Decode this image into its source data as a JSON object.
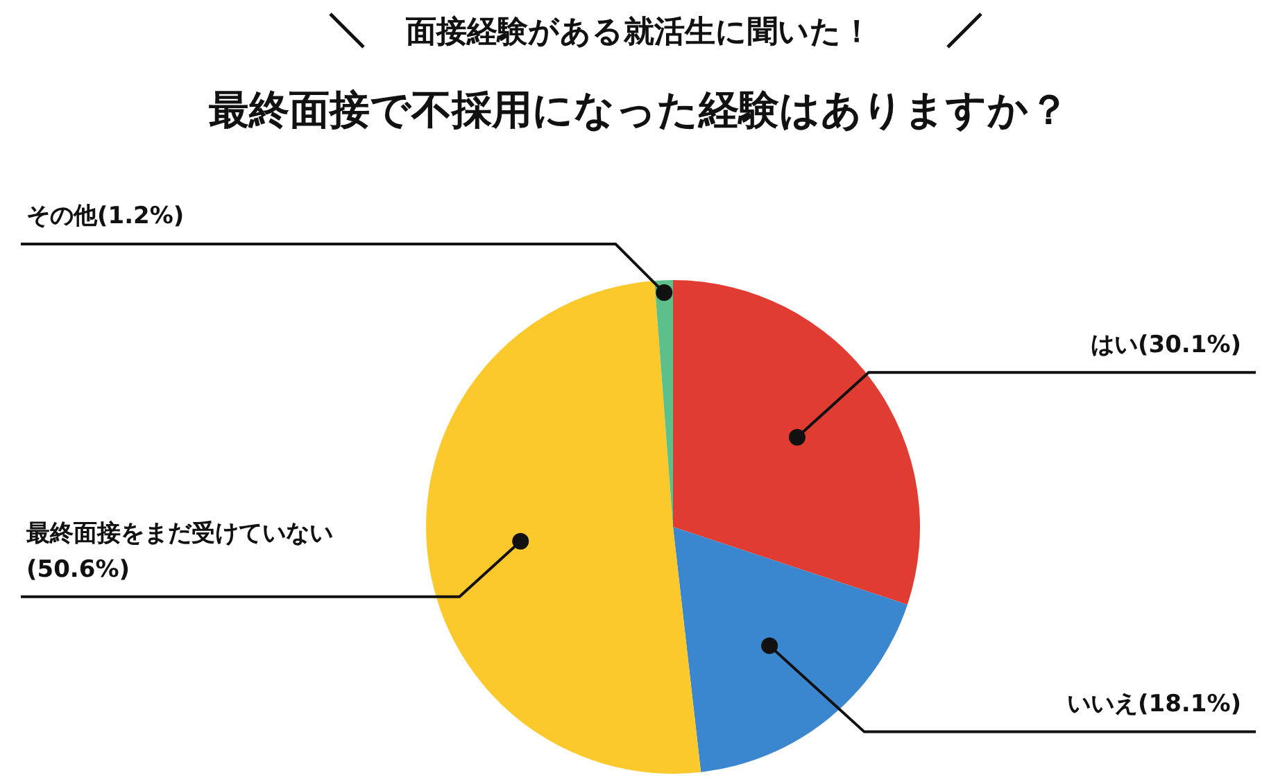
{
  "chart_data": {
    "type": "pie",
    "subtitle": "面接経験がある就活生に聞いた！",
    "title": "最終面接で不採用になった経験はありますか？",
    "categories": [
      "はい",
      "いいえ",
      "最終面接をまだ受けていない",
      "その他"
    ],
    "values": [
      30.1,
      18.1,
      50.6,
      1.2
    ],
    "value_labels": [
      "(30.1%)",
      "(18.1%)",
      "(50.6%)",
      "(1.2%)"
    ],
    "colors": [
      "#e03c31",
      "#3a87d0",
      "#fcc92d",
      "#5dbf8a"
    ]
  }
}
